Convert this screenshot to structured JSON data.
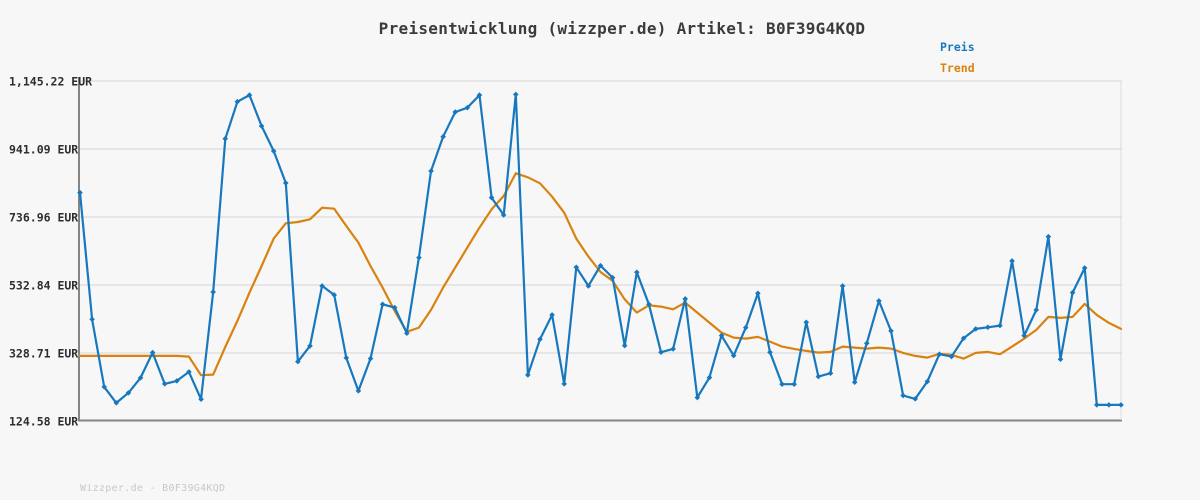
{
  "header": {
    "title": "Preisentwicklung (wizzper.de) Artikel: B0F39G4KQD"
  },
  "legend": [
    {
      "label": "Preis",
      "color": "#1878be"
    },
    {
      "label": "Trend",
      "color": "#d9820f"
    }
  ],
  "watermark": "Wizzper.de - B0F39G4KQD",
  "colors": {
    "background": "#f7f7f7",
    "gridline": "#dcdcdc",
    "axis_spine": "#858585",
    "price_line": "#1878be",
    "trend_line": "#d9820f",
    "title_text": "#3b3b3b",
    "tick_text": "#2e2e2e",
    "watermark_text": "#c8c8c8"
  },
  "chart_data": {
    "type": "line",
    "title": "Preisentwicklung (wizzper.de) Artikel: B0F39G4KQD",
    "currency": "EUR",
    "grid": true,
    "legend_position": "top-right",
    "x_axis_labels_visible": false,
    "ylim": [
      124.58,
      1145.22
    ],
    "y_ticks": [
      {
        "label": "1,145.22 EUR",
        "value": 1145.22
      },
      {
        "label": "941.09 EUR",
        "value": 941.09
      },
      {
        "label": "736.96 EUR",
        "value": 736.96
      },
      {
        "label": "532.84 EUR",
        "value": 532.84
      },
      {
        "label": "328.71 EUR",
        "value": 328.71
      },
      {
        "label": "124.58 EUR",
        "value": 124.58
      }
    ],
    "series": [
      {
        "name": "Trend",
        "color": "#d9820f",
        "markers": false,
        "values": [
          320,
          320,
          320,
          320,
          320,
          320,
          320,
          320,
          320,
          318,
          262,
          264,
          347,
          425,
          510,
          590,
          672,
          718,
          722,
          730,
          765,
          762,
          710,
          660,
          590,
          525,
          455,
          392,
          405,
          458,
          525,
          585,
          645,
          705,
          760,
          800,
          868,
          856,
          838,
          798,
          750,
          672,
          618,
          572,
          545,
          490,
          450,
          472,
          468,
          460,
          480,
          450,
          420,
          390,
          375,
          372,
          377,
          363,
          348,
          341,
          335,
          330,
          332,
          348,
          345,
          342,
          345,
          342,
          329,
          320,
          315,
          326,
          323,
          312,
          329,
          332,
          325,
          348,
          372,
          398,
          437,
          434,
          437,
          476,
          443,
          419,
          401
        ]
      },
      {
        "name": "Preis",
        "color": "#1878be",
        "markers": true,
        "values": [
          810,
          430,
          227,
          179,
          209,
          254,
          330,
          236,
          245,
          272,
          190,
          512,
          972,
          1083,
          1103,
          1010,
          935,
          839,
          303,
          350,
          530,
          503,
          314,
          215,
          312,
          475,
          465,
          388,
          615,
          875,
          978,
          1052,
          1065,
          1103,
          795,
          743,
          1105,
          263,
          370,
          443,
          236,
          586,
          530,
          591,
          555,
          351,
          571,
          475,
          331,
          341,
          491,
          195,
          255,
          381,
          321,
          405,
          508,
          331,
          235,
          235,
          421,
          258,
          268,
          530,
          241,
          358,
          485,
          395,
          201,
          191,
          243,
          325,
          318,
          373,
          401,
          406,
          411,
          605,
          381,
          458,
          678,
          310,
          510,
          584,
          173,
          173,
          173
        ]
      }
    ]
  }
}
